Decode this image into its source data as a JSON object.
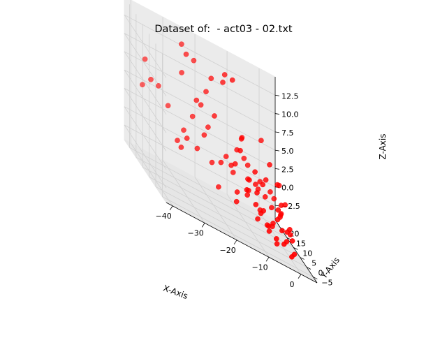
{
  "chart_data": {
    "type": "scatter",
    "projection": "3d",
    "title": "Dataset of:  - act03 - 02.txt",
    "xlabel": "X-Axis",
    "ylabel": "Y-Axis",
    "zlabel": "Z-Axis",
    "xlim": [
      -42,
      5
    ],
    "ylim": [
      -8,
      24
    ],
    "zlim": [
      -4.5,
      15
    ],
    "xticks": [
      -40,
      -30,
      -20,
      -10,
      0
    ],
    "yticks": [
      -5,
      0,
      5,
      10,
      15,
      20
    ],
    "zticks": [
      -2.5,
      0.0,
      2.5,
      5.0,
      7.5,
      10.0,
      12.5
    ],
    "xtick_labels": [
      "−40",
      "−30",
      "−20",
      "−10",
      "0"
    ],
    "ytick_labels": [
      "−5",
      "0",
      "5",
      "10",
      "15",
      "20"
    ],
    "ztick_labels": [
      "−2.5",
      "0.0",
      "2.5",
      "5.0",
      "7.5",
      "10.0",
      "12.5"
    ],
    "grid": true,
    "marker_color": "#ff0000",
    "points": [
      {
        "x": -38,
        "y": 18,
        "z": 9
      },
      {
        "x": -38,
        "y": 20,
        "z": 5
      },
      {
        "x": -37,
        "y": 16,
        "z": 7
      },
      {
        "x": -33,
        "y": 20,
        "z": 6
      },
      {
        "x": -30,
        "y": 20,
        "z": 4
      },
      {
        "x": -32,
        "y": 8,
        "z": 2
      },
      {
        "x": -30,
        "y": 10,
        "z": 1
      },
      {
        "x": -29,
        "y": 8,
        "z": 3
      },
      {
        "x": -27,
        "y": 17,
        "z": 10
      },
      {
        "x": -26,
        "y": 16,
        "z": 13
      },
      {
        "x": -25,
        "y": 22,
        "z": 13
      },
      {
        "x": -22,
        "y": 20,
        "z": 12
      },
      {
        "x": -24,
        "y": 13,
        "z": 8
      },
      {
        "x": -22,
        "y": 12,
        "z": 4
      },
      {
        "x": -20,
        "y": 11,
        "z": 1
      },
      {
        "x": -18,
        "y": 9,
        "z": 2
      },
      {
        "x": -20,
        "y": 6,
        "z": -1
      },
      {
        "x": -16,
        "y": 10,
        "z": 3
      },
      {
        "x": -25,
        "y": 10,
        "z": 2
      },
      {
        "x": -18,
        "y": 14,
        "z": 7
      },
      {
        "x": -15,
        "y": 15,
        "z": 12
      },
      {
        "x": -14,
        "y": 16,
        "z": 13
      },
      {
        "x": -12,
        "y": 15,
        "z": 13
      },
      {
        "x": -14,
        "y": 8,
        "z": 3
      },
      {
        "x": -12,
        "y": 9,
        "z": 5
      },
      {
        "x": -13,
        "y": 12,
        "z": 1
      },
      {
        "x": -11,
        "y": 14,
        "z": 4
      },
      {
        "x": -10,
        "y": 13,
        "z": 6
      },
      {
        "x": -10,
        "y": 7,
        "z": 2
      },
      {
        "x": -8,
        "y": 6,
        "z": 1
      },
      {
        "x": -9,
        "y": 10,
        "z": 0
      },
      {
        "x": -7,
        "y": 10,
        "z": 3
      },
      {
        "x": -6,
        "y": 12,
        "z": 1
      },
      {
        "x": -5,
        "y": 9,
        "z": 2
      },
      {
        "x": -5,
        "y": 11,
        "z": -2
      },
      {
        "x": -4,
        "y": 8,
        "z": -3
      },
      {
        "x": -3,
        "y": 12,
        "z": 0
      },
      {
        "x": -3,
        "y": 6,
        "z": -2
      },
      {
        "x": -2,
        "y": 5,
        "z": -1
      },
      {
        "x": -2,
        "y": 9,
        "z": -3
      },
      {
        "x": -1,
        "y": 4,
        "z": -2
      },
      {
        "x": -1,
        "y": 7,
        "z": 0
      },
      {
        "x": 0,
        "y": 8,
        "z": -1
      },
      {
        "x": 0,
        "y": 3,
        "z": -3
      },
      {
        "x": 1,
        "y": 5,
        "z": -2
      },
      {
        "x": 1,
        "y": 10,
        "z": -1
      },
      {
        "x": 2,
        "y": 12,
        "z": 0
      },
      {
        "x": 2,
        "y": 2,
        "z": -4
      },
      {
        "x": 3,
        "y": 6,
        "z": -3
      },
      {
        "x": 3,
        "y": 8,
        "z": -2
      },
      {
        "x": 4,
        "y": 14,
        "z": 0
      },
      {
        "x": 4,
        "y": 10,
        "z": -3
      },
      {
        "x": -8,
        "y": 3,
        "z": -1
      },
      {
        "x": -6,
        "y": 2,
        "z": -2
      },
      {
        "x": -4,
        "y": 1,
        "z": -3
      },
      {
        "x": -2,
        "y": 0,
        "z": -3
      },
      {
        "x": 0,
        "y": -1,
        "z": -4
      },
      {
        "x": -10,
        "y": 2,
        "z": 0
      },
      {
        "x": -12,
        "y": 4,
        "z": 1
      },
      {
        "x": -15,
        "y": 4,
        "z": 0
      },
      {
        "x": -16,
        "y": 2,
        "z": -1
      },
      {
        "x": -20,
        "y": 14,
        "z": 5
      },
      {
        "x": -19,
        "y": 18,
        "z": 9
      },
      {
        "x": -17,
        "y": 19,
        "z": 11
      },
      {
        "x": -8,
        "y": 16,
        "z": 3
      },
      {
        "x": -6,
        "y": 18,
        "z": 2
      },
      {
        "x": -3,
        "y": 16,
        "z": 1
      },
      {
        "x": 1,
        "y": 18,
        "z": 0
      },
      {
        "x": 3,
        "y": 20,
        "z": -1
      },
      {
        "x": -1,
        "y": 20,
        "z": 6
      },
      {
        "x": -7,
        "y": 20,
        "z": 5
      },
      {
        "x": -9,
        "y": 3,
        "z": -2
      },
      {
        "x": -5,
        "y": 4,
        "z": -3
      },
      {
        "x": -3,
        "y": 3,
        "z": -4
      },
      {
        "x": -6,
        "y": 6,
        "z": -1
      },
      {
        "x": -11,
        "y": 6,
        "z": 0
      },
      {
        "x": 2,
        "y": 15,
        "z": 2
      },
      {
        "x": 4,
        "y": 17,
        "z": -2
      },
      {
        "x": 5,
        "y": 21,
        "z": 1
      },
      {
        "x": -28,
        "y": 13,
        "z": 3
      },
      {
        "x": -24,
        "y": 16,
        "z": 5
      },
      {
        "x": -21,
        "y": 17,
        "z": 7
      },
      {
        "x": -2,
        "y": 14,
        "z": 2
      },
      {
        "x": 0,
        "y": 16,
        "z": 4
      },
      {
        "x": -14,
        "y": 11,
        "z": 2
      },
      {
        "x": -8,
        "y": 13,
        "z": 1
      },
      {
        "x": -4,
        "y": 15,
        "z": 0
      },
      {
        "x": -1,
        "y": 12,
        "z": -1
      }
    ]
  }
}
